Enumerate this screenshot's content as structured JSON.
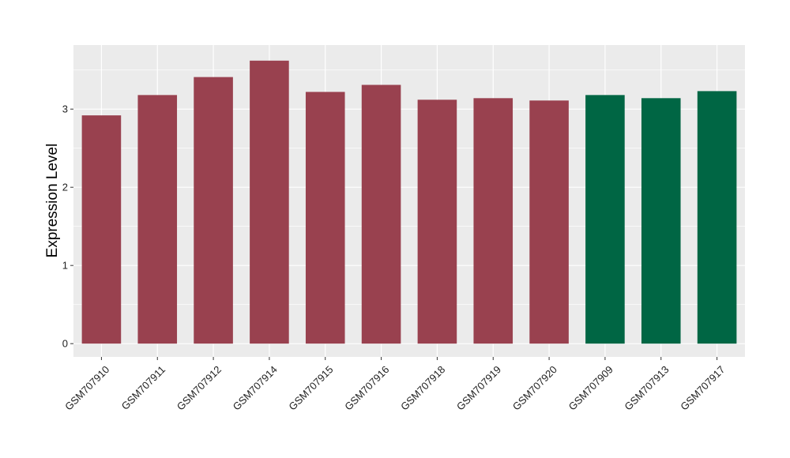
{
  "chart_data": {
    "type": "bar",
    "title": "",
    "xlabel": "",
    "ylabel": "Expression Level",
    "ylim": [
      -0.17,
      3.82
    ],
    "yticks": [
      0,
      1,
      2,
      3
    ],
    "grid": true,
    "legend": "none",
    "categories": [
      "GSM707910",
      "GSM707911",
      "GSM707912",
      "GSM707914",
      "GSM707915",
      "GSM707916",
      "GSM707918",
      "GSM707919",
      "GSM707920",
      "GSM707909",
      "GSM707913",
      "GSM707917"
    ],
    "values": [
      2.92,
      3.18,
      3.41,
      3.62,
      3.22,
      3.31,
      3.12,
      3.14,
      3.11,
      3.18,
      3.14,
      3.23
    ],
    "colors": [
      "#99414f",
      "#99414f",
      "#99414f",
      "#99414f",
      "#99414f",
      "#99414f",
      "#99414f",
      "#99414f",
      "#99414f",
      "#006644",
      "#006644",
      "#006644"
    ],
    "panel_background": "#ebebeb",
    "gridline_color": "#ffffff"
  }
}
